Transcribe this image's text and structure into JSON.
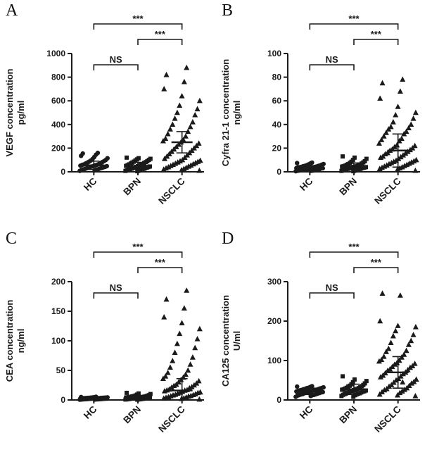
{
  "figure": {
    "background": "#ffffff",
    "point_color": "#1a1a1a",
    "axis_color": "#1a1a1a"
  },
  "chart_data": [
    {
      "panel": "A",
      "type": "scatter",
      "ylabel_line1": "VEGF concentration",
      "ylabel_line2": "pg/ml",
      "ylim": [
        0,
        1000
      ],
      "yticks": [
        0,
        200,
        400,
        600,
        800,
        1000
      ],
      "categories": [
        "HC",
        "BPN",
        "NSCLC"
      ],
      "legend_position": "none",
      "grid": false,
      "series": [
        {
          "name": "HC",
          "marker": "circle",
          "mean": 55,
          "sd": 35,
          "values": [
            8,
            12,
            15,
            18,
            20,
            22,
            25,
            28,
            30,
            32,
            35,
            38,
            40,
            42,
            45,
            48,
            50,
            52,
            55,
            58,
            60,
            63,
            66,
            70,
            74,
            78,
            82,
            86,
            90,
            95,
            100,
            108,
            115,
            125,
            135,
            145,
            155,
            160
          ]
        },
        {
          "name": "BPN",
          "marker": "square",
          "mean": 50,
          "sd": 30,
          "values": [
            5,
            8,
            10,
            12,
            15,
            18,
            20,
            22,
            25,
            27,
            30,
            32,
            35,
            38,
            40,
            42,
            45,
            48,
            50,
            53,
            56,
            60,
            63,
            66,
            70,
            74,
            78,
            82,
            86,
            90,
            95,
            100,
            105,
            110,
            115,
            120
          ]
        },
        {
          "name": "NSCLC",
          "marker": "triangle",
          "mean": 250,
          "sd": 90,
          "values": [
            10,
            15,
            20,
            25,
            30,
            35,
            40,
            45,
            50,
            55,
            60,
            65,
            70,
            75,
            80,
            85,
            90,
            95,
            100,
            110,
            120,
            130,
            140,
            150,
            160,
            170,
            180,
            190,
            200,
            210,
            220,
            230,
            240,
            250,
            260,
            270,
            280,
            300,
            320,
            340,
            360,
            380,
            400,
            420,
            450,
            480,
            500,
            530,
            560,
            600,
            640,
            700,
            760,
            820,
            880
          ]
        }
      ],
      "significance": [
        {
          "from": "HC",
          "to": "NSCLC",
          "label": "***"
        },
        {
          "from": "BPN",
          "to": "NSCLC",
          "label": "***"
        },
        {
          "from": "HC",
          "to": "BPN",
          "label": "NS"
        }
      ]
    },
    {
      "panel": "B",
      "type": "scatter",
      "ylabel_line1": "Cyfra 21-1 concentration",
      "ylabel_line2": "ng/ml",
      "ylim": [
        0,
        100
      ],
      "yticks": [
        0,
        20,
        40,
        60,
        80,
        100
      ],
      "categories": [
        "HC",
        "BPN",
        "NSCLC"
      ],
      "legend_position": "none",
      "grid": false,
      "series": [
        {
          "name": "HC",
          "marker": "circle",
          "mean": 3,
          "sd": 2,
          "values": [
            0.5,
            0.8,
            0.9,
            1,
            1.1,
            1.2,
            1.5,
            1.8,
            1.9,
            2,
            2.1,
            2.2,
            2.5,
            2.8,
            2.9,
            3,
            3.1,
            3.2,
            3.5,
            3.8,
            3.9,
            4,
            4.1,
            4.2,
            4.5,
            4.8,
            5,
            5.1,
            5.3,
            5.6,
            6,
            6.3,
            6.6,
            7,
            7.4,
            7.8
          ]
        },
        {
          "name": "BPN",
          "marker": "square",
          "mean": 4.5,
          "sd": 3,
          "values": [
            0.5,
            0.8,
            1,
            1.2,
            1.5,
            1.8,
            2,
            2.2,
            2.4,
            2.5,
            2.8,
            3,
            3.2,
            3.4,
            3.5,
            3.8,
            4,
            4.2,
            4.4,
            4.5,
            4.8,
            5,
            5.2,
            5.5,
            6,
            6.2,
            6.5,
            7,
            7.5,
            8,
            8.5,
            9,
            10,
            11,
            12,
            13
          ]
        },
        {
          "name": "NSCLC",
          "marker": "triangle",
          "mean": 18,
          "sd": 14,
          "values": [
            1,
            2,
            2.5,
            3,
            3.5,
            4,
            4.5,
            5,
            5.5,
            6,
            6.5,
            7,
            7.5,
            8,
            8.5,
            9,
            9.5,
            10,
            11,
            12,
            12.5,
            13,
            14,
            15,
            15.5,
            16,
            17,
            18,
            18.5,
            19,
            20,
            21,
            22,
            22.5,
            24,
            26,
            27,
            28,
            30,
            32,
            33,
            34,
            36,
            37,
            38,
            40,
            42,
            45,
            48,
            50,
            55,
            62,
            68,
            75,
            78
          ]
        }
      ],
      "significance": [
        {
          "from": "HC",
          "to": "NSCLC",
          "label": "***"
        },
        {
          "from": "BPN",
          "to": "NSCLC",
          "label": "***"
        },
        {
          "from": "HC",
          "to": "BPN",
          "label": "NS"
        }
      ]
    },
    {
      "panel": "C",
      "type": "scatter",
      "ylabel_line1": "CEA concentration",
      "ylabel_line2": "ng/ml",
      "ylim": [
        0,
        200
      ],
      "yticks": [
        0,
        50,
        100,
        150,
        200
      ],
      "categories": [
        "HC",
        "BPN",
        "NSCLC"
      ],
      "legend_position": "none",
      "grid": false,
      "series": [
        {
          "name": "HC",
          "marker": "circle",
          "mean": 2.5,
          "sd": 1.5,
          "values": [
            0.5,
            0.7,
            0.8,
            1,
            1.1,
            1.2,
            1.3,
            1.4,
            1.5,
            1.6,
            1.8,
            1.9,
            2,
            2.1,
            2.2,
            2.3,
            2.4,
            2.6,
            2.7,
            2.8,
            2.9,
            3,
            3.1,
            3.2,
            3.4,
            3.5,
            3.6,
            3.7,
            3.8,
            3.9,
            4,
            4.3,
            4.4,
            4.6,
            5,
            5.4
          ]
        },
        {
          "name": "BPN",
          "marker": "square",
          "mean": 4,
          "sd": 3,
          "values": [
            0.5,
            0.8,
            1,
            1.1,
            1.3,
            1.5,
            1.8,
            2,
            2.1,
            2.3,
            2.5,
            2.8,
            3,
            3.1,
            3.3,
            3.5,
            3.8,
            4,
            4.1,
            4.3,
            4.5,
            4.8,
            5,
            5.1,
            5.3,
            5.5,
            6,
            6.2,
            6.5,
            7,
            7.5,
            8,
            9,
            10,
            11,
            12
          ]
        },
        {
          "name": "NSCLC",
          "marker": "triangle",
          "mean": 16,
          "sd": 20,
          "values": [
            1,
            2,
            2.5,
            3,
            4,
            4.5,
            5,
            6,
            6.5,
            7,
            8,
            8.5,
            9,
            10,
            11,
            12,
            12.5,
            13,
            14,
            15,
            16,
            16.5,
            17,
            18,
            20,
            21,
            22,
            24,
            25,
            26,
            28,
            30,
            32,
            34,
            36,
            38,
            40,
            43,
            46,
            50,
            55,
            60,
            66,
            72,
            80,
            88,
            95,
            103,
            112,
            120,
            130,
            140,
            155,
            170,
            185
          ]
        }
      ],
      "significance": [
        {
          "from": "HC",
          "to": "NSCLC",
          "label": "***"
        },
        {
          "from": "BPN",
          "to": "NSCLC",
          "label": "***"
        },
        {
          "from": "HC",
          "to": "BPN",
          "label": "NS"
        }
      ]
    },
    {
      "panel": "D",
      "type": "scatter",
      "ylabel_line1": "CA125 concentration",
      "ylabel_line2": "U/ml",
      "ylim": [
        0,
        300
      ],
      "yticks": [
        0,
        100,
        200,
        300
      ],
      "categories": [
        "HC",
        "BPN",
        "NSCLC"
      ],
      "legend_position": "none",
      "grid": false,
      "series": [
        {
          "name": "HC",
          "marker": "circle",
          "mean": 22,
          "sd": 8,
          "values": [
            8,
            10,
            11,
            12,
            12.5,
            13,
            14,
            14.5,
            15,
            16,
            17,
            17.5,
            18,
            19,
            19.5,
            20,
            21,
            21.5,
            22,
            23,
            24,
            24.5,
            25,
            25.5,
            26,
            27,
            27.5,
            28,
            29,
            30,
            30.5,
            31,
            32,
            33,
            34,
            35
          ]
        },
        {
          "name": "BPN",
          "marker": "square",
          "mean": 27,
          "sd": 13,
          "values": [
            8,
            10,
            12,
            13,
            14,
            15,
            16,
            16.5,
            17,
            18,
            19,
            20,
            21,
            21.5,
            22,
            23,
            24,
            25,
            26,
            26.5,
            27,
            28,
            29,
            30,
            31,
            32,
            34,
            35,
            36,
            38,
            40,
            42,
            45,
            48,
            52,
            60
          ]
        },
        {
          "name": "NSCLC",
          "marker": "triangle",
          "mean": 70,
          "sd": 40,
          "values": [
            10,
            12,
            14,
            18,
            20,
            22,
            25,
            26,
            28,
            30,
            34,
            36,
            38,
            42,
            44,
            46,
            50,
            52,
            54,
            58,
            60,
            62,
            66,
            68,
            70,
            74,
            76,
            78,
            82,
            84,
            86,
            90,
            92,
            94,
            98,
            100,
            102,
            108,
            110,
            115,
            122,
            125,
            130,
            140,
            145,
            150,
            162,
            165,
            175,
            185,
            188,
            200,
            265,
            270,
            45
          ]
        }
      ],
      "significance": [
        {
          "from": "HC",
          "to": "NSCLC",
          "label": "***"
        },
        {
          "from": "BPN",
          "to": "NSCLC",
          "label": "***"
        },
        {
          "from": "HC",
          "to": "BPN",
          "label": "NS"
        }
      ]
    }
  ]
}
